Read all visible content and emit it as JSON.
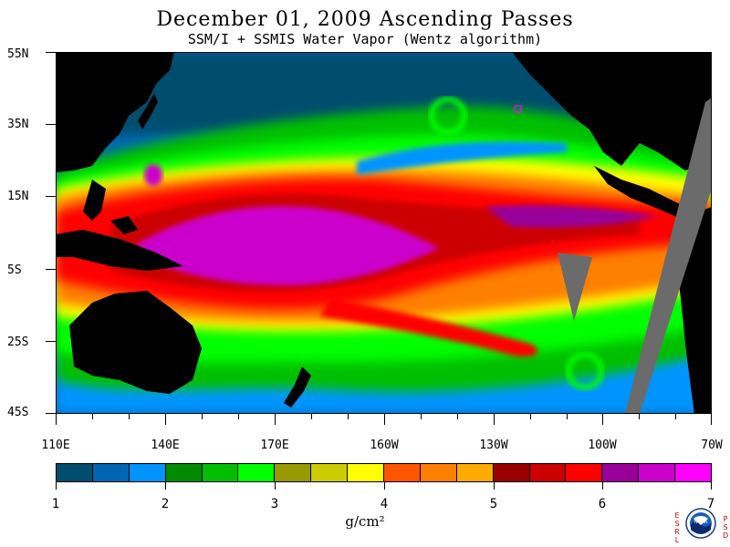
{
  "title": "December 01, 2009  Ascending Passes",
  "subtitle": "SSM/I + SSMIS Water Vapor (Wentz algorithm)",
  "latitude_labels": [
    "55N",
    "35N",
    "15N",
    "5S",
    "25S",
    "45S"
  ],
  "longitude_labels": [
    "110E",
    "140E",
    "170E",
    "160W",
    "130W",
    "100W",
    "70W"
  ],
  "colorbar": {
    "colors": [
      "#004d6e",
      "#0066b3",
      "#0094ff",
      "#008a00",
      "#00bf00",
      "#00ff00",
      "#999900",
      "#cccc00",
      "#ffff00",
      "#ff5500",
      "#ff7f00",
      "#ffaa00",
      "#990000",
      "#cc0000",
      "#ff0000",
      "#990099",
      "#cc00cc",
      "#ff00ff"
    ],
    "tick_labels": [
      "1",
      "2",
      "3",
      "4",
      "5",
      "6",
      "7"
    ],
    "units": "g/cm²"
  },
  "logo": {
    "left_text": "ESRL",
    "right_text": "PSD",
    "center_text": "NOAA"
  }
}
